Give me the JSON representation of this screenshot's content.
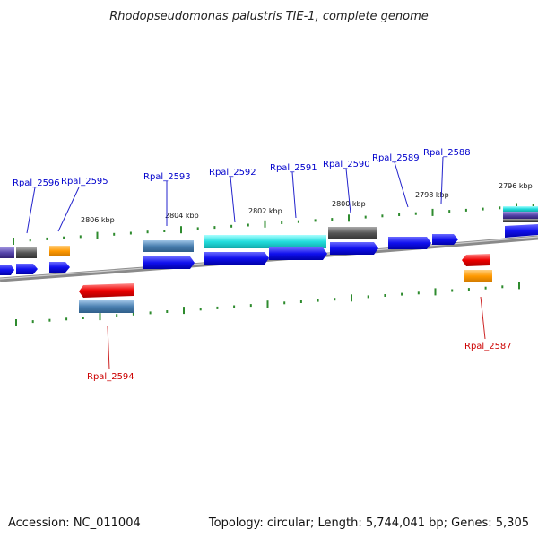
{
  "title": "Rhodopseudomonas palustris TIE-1, complete genome",
  "footer": {
    "accession": "Accession: NC_011004",
    "summary": "Topology: circular; Length: 5,744,041 bp; Genes: 5,305"
  },
  "ruler": {
    "kbp_labels": [
      "2806 kbp",
      "2804 kbp",
      "2802 kbp",
      "2800 kbp",
      "2798 kbp",
      "2796 kbp"
    ]
  },
  "genes": {
    "top_labels": [
      "Rpal_2596",
      "Rpal_2595",
      "Rpal_2593",
      "Rpal_2592",
      "Rpal_2591",
      "Rpal_2590",
      "Rpal_2589",
      "Rpal_2588"
    ],
    "bottom_labels": [
      "Rpal_2594",
      "Rpal_2587"
    ]
  },
  "colors": {
    "forward_label": "#0000cc",
    "reverse_label": "#cc0000",
    "cds_blue": "#1010ee",
    "backbone": "#777777",
    "tick": "#2e8b2e",
    "cyan": "#22dddd",
    "steel": "#4a7fb0",
    "gray": "#555555",
    "orange": "#ff9900",
    "red": "#ee0000",
    "purple": "#5544aa"
  }
}
